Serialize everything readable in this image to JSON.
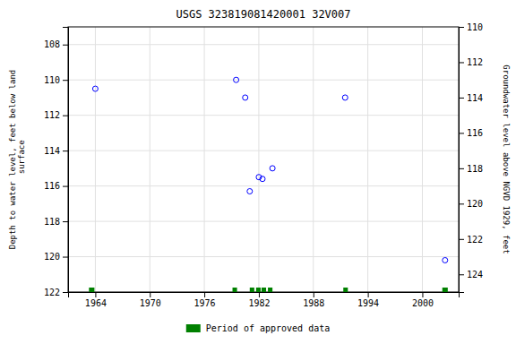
{
  "chart_data": {
    "type": "scatter",
    "title": "USGS 323819081420001 32V007",
    "ylabel": "Depth to water level, feet below land\n surface",
    "y2label": "Groundwater level above NGVD 1929, feet",
    "xlim": [
      1961,
      2004
    ],
    "ylim": [
      122,
      107
    ],
    "y2lim": [
      125,
      110
    ],
    "xticks": [
      1964,
      1970,
      1976,
      1982,
      1988,
      1994,
      2000
    ],
    "yticks": [
      108,
      110,
      112,
      114,
      116,
      118,
      120,
      122
    ],
    "y2ticks": [
      124,
      122,
      120,
      118,
      116,
      114,
      112,
      110
    ],
    "grid": true,
    "legend": "bottom",
    "series": [
      {
        "type": "scatter",
        "color": "#0000ff",
        "marker": "circle",
        "x": [
          1964.0,
          1979.5,
          1980.5,
          1981.0,
          1982.0,
          1982.4,
          1983.5,
          1991.5,
          2002.5
        ],
        "values": [
          110.5,
          110.0,
          111.0,
          116.3,
          115.5,
          115.6,
          115.0,
          111.0,
          120.2
        ]
      },
      {
        "type": "bar",
        "name": "Period of approved data",
        "color": "#008000",
        "x": [
          1963.3,
          1979.1,
          1981.0,
          1981.7,
          1982.3,
          1983.0,
          1991.3,
          2002.2
        ],
        "widths": [
          0.6,
          0.5,
          0.5,
          0.5,
          0.5,
          0.5,
          0.5,
          0.6
        ]
      }
    ]
  }
}
